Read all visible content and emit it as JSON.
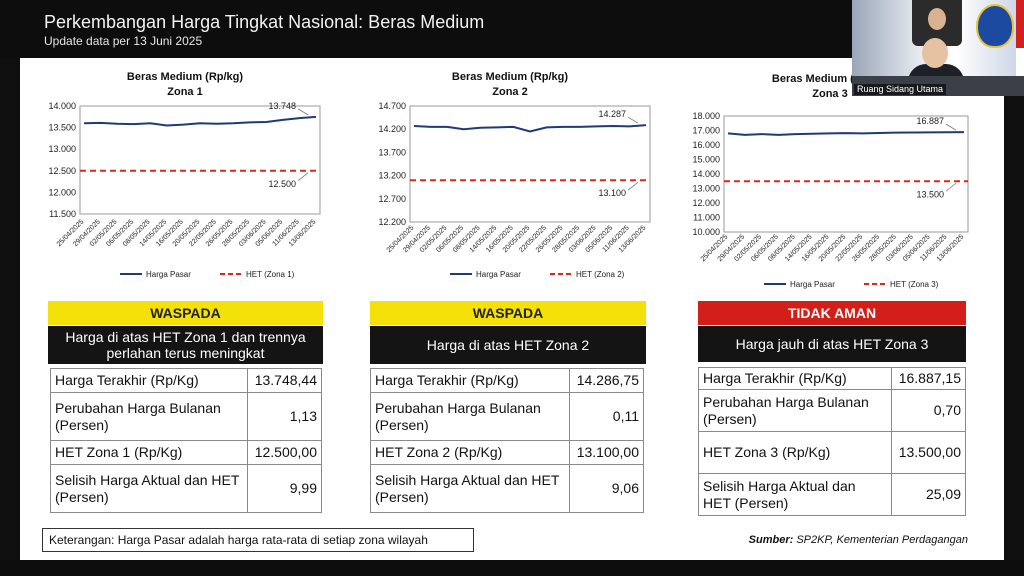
{
  "header": {
    "title": "Perkembangan Harga Tingkat Nasional: Beras Medium",
    "subtitle": "Update data per 13 Juni 2025"
  },
  "webcam": {
    "label": "Ruang Sidang Utama"
  },
  "legend": {
    "market": "Harga Pasar"
  },
  "colors": {
    "market_line": "#1f3b73",
    "het_line": "#d9281e",
    "warning_yellow": "#f5e10a",
    "danger_red": "#d31f1a"
  },
  "chart_data": [
    {
      "type": "line",
      "title": "Beras Medium (Rp/kg)",
      "subtitle": "Zona 1",
      "x": [
        "25/04/2025",
        "29/04/2025",
        "02/05/2025",
        "06/05/2025",
        "08/05/2025",
        "14/05/2025",
        "16/05/2025",
        "20/05/2025",
        "22/05/2025",
        "26/05/2025",
        "28/05/2025",
        "03/06/2025",
        "05/06/2025",
        "11/06/2025",
        "13/06/2025"
      ],
      "yticks": [
        "14.000",
        "13.500",
        "13.000",
        "12.500",
        "12.000",
        "11.500"
      ],
      "ylim": [
        11500,
        14000
      ],
      "series": [
        {
          "name": "Harga Pasar",
          "values": [
            13600,
            13610,
            13590,
            13580,
            13600,
            13550,
            13570,
            13600,
            13590,
            13600,
            13620,
            13630,
            13680,
            13720,
            13748
          ]
        },
        {
          "name": "HET (Zona 1)",
          "values": [
            12500,
            12500,
            12500,
            12500,
            12500,
            12500,
            12500,
            12500,
            12500,
            12500,
            12500,
            12500,
            12500,
            12500,
            12500
          ]
        }
      ],
      "annotations": {
        "market_last": "13.748",
        "het": "12.500"
      },
      "legend_het": "HET (Zona 1)"
    },
    {
      "type": "line",
      "title": "Beras Medium (Rp/kg)",
      "subtitle": "Zona 2",
      "x": [
        "25/04/2025",
        "29/04/2025",
        "02/05/2025",
        "06/05/2025",
        "08/05/2025",
        "14/05/2025",
        "16/05/2025",
        "20/05/2025",
        "22/05/2025",
        "26/05/2025",
        "28/05/2025",
        "03/06/2025",
        "05/06/2025",
        "11/06/2025",
        "13/06/2025"
      ],
      "yticks": [
        "14.700",
        "14.200",
        "13.700",
        "13.200",
        "12.700",
        "12.200"
      ],
      "ylim": [
        12200,
        14700
      ],
      "series": [
        {
          "name": "Harga Pasar",
          "values": [
            14270,
            14250,
            14250,
            14200,
            14230,
            14240,
            14250,
            14150,
            14240,
            14250,
            14250,
            14260,
            14270,
            14260,
            14287
          ]
        },
        {
          "name": "HET (Zona 2)",
          "values": [
            13100,
            13100,
            13100,
            13100,
            13100,
            13100,
            13100,
            13100,
            13100,
            13100,
            13100,
            13100,
            13100,
            13100,
            13100
          ]
        }
      ],
      "annotations": {
        "market_last": "14.287",
        "het": "13.100"
      },
      "legend_het": "HET (Zona 2)"
    },
    {
      "type": "line",
      "title": "Beras Medium (Rp/kg)",
      "subtitle": "Zona 3",
      "x": [
        "25/04/2025",
        "29/04/2025",
        "02/05/2025",
        "06/05/2025",
        "08/05/2025",
        "14/05/2025",
        "16/05/2025",
        "20/05/2025",
        "22/05/2025",
        "26/05/2025",
        "28/05/2025",
        "03/06/2025",
        "05/06/2025",
        "11/06/2025",
        "13/06/2025"
      ],
      "yticks": [
        "18.000",
        "17.000",
        "16.000",
        "15.000",
        "14.000",
        "13.000",
        "12.000",
        "11.000",
        "10.000"
      ],
      "ylim": [
        10000,
        18000
      ],
      "series": [
        {
          "name": "Harga Pasar",
          "values": [
            16800,
            16700,
            16750,
            16700,
            16750,
            16780,
            16800,
            16820,
            16800,
            16830,
            16850,
            16860,
            16870,
            16880,
            16887
          ]
        },
        {
          "name": "HET (Zona 3)",
          "values": [
            13500,
            13500,
            13500,
            13500,
            13500,
            13500,
            13500,
            13500,
            13500,
            13500,
            13500,
            13500,
            13500,
            13500,
            13500
          ]
        }
      ],
      "annotations": {
        "market_last": "16.887",
        "het": "13.500"
      },
      "legend_het": "HET (Zona 3)"
    }
  ],
  "panels": [
    {
      "status": "WASPADA",
      "statement": "Harga di atas HET Zona 1 dan trennya perlahan terus meningkat",
      "rows": [
        {
          "label": "Harga Terakhir (Rp/Kg)",
          "value": "13.748,44"
        },
        {
          "label": "Perubahan Harga Bulanan (Persen)",
          "value": "1,13"
        },
        {
          "label": "HET Zona 1 (Rp/Kg)",
          "value": "12.500,00"
        },
        {
          "label": "Selisih Harga Aktual dan HET (Persen)",
          "value": "9,99"
        }
      ]
    },
    {
      "status": "WASPADA",
      "statement": "Harga di atas HET Zona 2",
      "rows": [
        {
          "label": "Harga Terakhir (Rp/Kg)",
          "value": "14.286,75"
        },
        {
          "label": "Perubahan Harga Bulanan (Persen)",
          "value": "0,11"
        },
        {
          "label": "HET Zona 2 (Rp/Kg)",
          "value": "13.100,00"
        },
        {
          "label": "Selisih Harga Aktual dan HET (Persen)",
          "value": "9,06"
        }
      ]
    },
    {
      "status": "TIDAK AMAN",
      "statement": "Harga jauh di atas HET Zona 3",
      "rows": [
        {
          "label": "Harga Terakhir (Rp/Kg)",
          "value": "16.887,15"
        },
        {
          "label": "Perubahan Harga Bulanan (Persen)",
          "value": "0,70"
        },
        {
          "label": "HET Zona 3 (Rp/Kg)",
          "value": "13.500,00"
        },
        {
          "label": "Selisih Harga Aktual dan HET (Persen)",
          "value": "25,09"
        }
      ]
    }
  ],
  "footer": {
    "note": "Keterangan: Harga Pasar adalah harga rata-rata di setiap zona wilayah",
    "source_label": "Sumber:",
    "source_text": "SP2KP, Kementerian Perdagangan"
  }
}
